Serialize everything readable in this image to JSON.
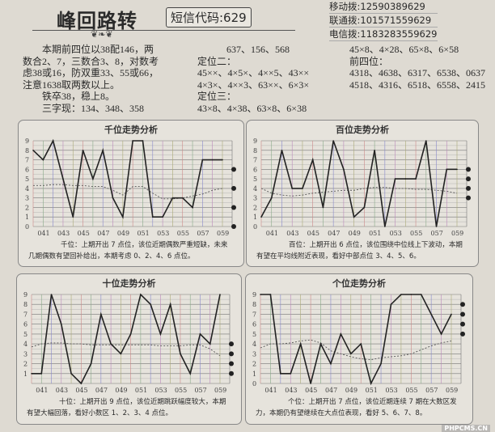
{
  "header": {
    "title": "峰回路转",
    "sms_code": "短信代码:629",
    "phones": [
      "移动拨:12590389629",
      "联通拨:101571559629",
      "电信拨:1183283559629"
    ]
  },
  "columns": {
    "col1": [
      "本期前四位以38配146，两数合2、7，三数合3、8，对数考虑38或16，防双重33、55或66，注意1638取两数以上。",
      "铁卒38，稳上8。",
      "三字现：134、348、358"
    ],
    "col2": [
      "637、156、568",
      "定位二：",
      "45××、4×5×、4××5、43××",
      "4×3×、4××3、63××、6×3×",
      "定位三：",
      "43×8、4×38、63×8、6×38"
    ],
    "col3": [
      "45×8、4×28、65×8、6×58",
      "前四位：",
      "4318、4638、6317、6538、0637",
      "4518、4316、6518、6558、2415"
    ]
  },
  "watermark": "PHPCMS.CN",
  "chart_data": [
    {
      "type": "line",
      "title": "千位走势分析",
      "x": [
        "040",
        "041",
        "042",
        "043",
        "044",
        "045",
        "046",
        "047",
        "048",
        "049",
        "050",
        "051",
        "052",
        "053",
        "054",
        "055",
        "056",
        "057",
        "058",
        "059"
      ],
      "xticks": [
        "041",
        "043",
        "045",
        "047",
        "049",
        "051",
        "053",
        "055",
        "057",
        "059"
      ],
      "values": [
        8,
        7,
        9,
        5,
        1,
        8,
        5,
        8,
        3,
        1,
        9,
        9,
        1,
        1,
        3,
        3,
        2,
        7,
        7,
        7
      ],
      "average": [
        4.3,
        4.3,
        4.4,
        4.4,
        4.3,
        4.3,
        4.2,
        4.2,
        3.8,
        3.3,
        4.2,
        4.2,
        3.5,
        2.9,
        2.9,
        3.0,
        3.2,
        3.4,
        3.8,
        4.0
      ],
      "picks": [
        6,
        4,
        2,
        0
      ],
      "ylim": [
        0,
        9
      ],
      "yticks": [
        0,
        1,
        2,
        3,
        4,
        5,
        6,
        7,
        8,
        9
      ],
      "grid": true,
      "caption": "千位：上期开出 7 点位，该位近期偶数严重短缺，未来几期偶数有望回补给出，本期考虑 0、2、4、6 点位。"
    },
    {
      "type": "line",
      "title": "百位走势分析",
      "x": [
        "040",
        "041",
        "042",
        "043",
        "044",
        "045",
        "046",
        "047",
        "048",
        "049",
        "050",
        "051",
        "052",
        "053",
        "054",
        "055",
        "056",
        "057",
        "058",
        "059"
      ],
      "xticks": [
        "041",
        "043",
        "045",
        "047",
        "049",
        "051",
        "053",
        "055",
        "057",
        "059"
      ],
      "values": [
        1,
        3,
        8,
        4,
        4,
        7,
        2,
        9,
        6,
        1,
        2,
        8,
        0,
        5,
        5,
        5,
        9,
        0,
        6,
        6
      ],
      "average": [
        4.0,
        3.5,
        3.3,
        3.2,
        3.3,
        3.5,
        3.6,
        3.7,
        3.8,
        3.8,
        4.0,
        4.1,
        4.1,
        4.0,
        4.0,
        3.9,
        3.9,
        3.8,
        3.7,
        3.5
      ],
      "picks": [
        6,
        5,
        4,
        3
      ],
      "ylim": [
        0,
        9
      ],
      "yticks": [
        0,
        1,
        2,
        3,
        4,
        5,
        6,
        7,
        8,
        9
      ],
      "grid": true,
      "caption": "百位：上期开出 6 点位，该位围绕中位线上下波动，本期有望在平均线附近表现，看好中部点位 3、4、5、6。"
    },
    {
      "type": "line",
      "title": "十位走势分析",
      "x": [
        "040",
        "041",
        "042",
        "043",
        "044",
        "045",
        "046",
        "047",
        "048",
        "049",
        "050",
        "051",
        "052",
        "053",
        "054",
        "055",
        "056",
        "057",
        "058",
        "059"
      ],
      "xticks": [
        "041",
        "043",
        "045",
        "047",
        "049",
        "051",
        "053",
        "055",
        "057",
        "059"
      ],
      "values": [
        1,
        1,
        9,
        6,
        1,
        0,
        2,
        7,
        4,
        3,
        5,
        9,
        8,
        5,
        8,
        3,
        1,
        5,
        4,
        9
      ],
      "average": [
        3.7,
        4.0,
        4.1,
        4.1,
        4.0,
        4.0,
        3.9,
        3.9,
        3.9,
        3.9,
        3.9,
        3.9,
        3.9,
        3.8,
        3.8,
        3.8,
        3.9,
        3.9,
        3.5,
        2.8
      ],
      "picks": [
        4,
        3,
        2,
        1
      ],
      "ylim": [
        0,
        9
      ],
      "yticks": [
        1,
        2,
        3,
        4,
        5,
        6,
        7,
        8,
        9
      ],
      "grid": true,
      "caption": "十位：上期开出 9 点位，该位近期跳跃幅度较大，本期有望大幅回落，看好小数区 1、2、3、4 点位。"
    },
    {
      "type": "line",
      "title": "个位走势分析",
      "x": [
        "040",
        "041",
        "042",
        "043",
        "044",
        "045",
        "046",
        "047",
        "048",
        "049",
        "050",
        "051",
        "052",
        "053",
        "054",
        "055",
        "056",
        "057",
        "058",
        "059"
      ],
      "xticks": [
        "041",
        "043",
        "045",
        "047",
        "049",
        "051",
        "053",
        "055",
        "057",
        "059"
      ],
      "values": [
        9,
        9,
        1,
        1,
        4,
        0,
        4,
        2,
        5,
        3,
        4,
        0,
        2,
        8,
        9,
        9,
        9,
        7,
        5,
        7
      ],
      "average": [
        3.6,
        4.0,
        4.0,
        4.1,
        4.3,
        4.4,
        4.1,
        3.3,
        3.0,
        2.7,
        2.5,
        2.4,
        2.6,
        2.7,
        2.8,
        3.0,
        3.4,
        3.8,
        4.1,
        4.3
      ],
      "picks": [
        8,
        7,
        6,
        5
      ],
      "ylim": [
        0,
        9
      ],
      "yticks": [
        0,
        1,
        2,
        3,
        4,
        5,
        6,
        7,
        8,
        9
      ],
      "grid": true,
      "caption": "个位：上期开出 7 点位，该位近期连续 7 期在大数区发力，本期仍有望继续在大点位表现，看好 5、6、7、8。"
    }
  ]
}
